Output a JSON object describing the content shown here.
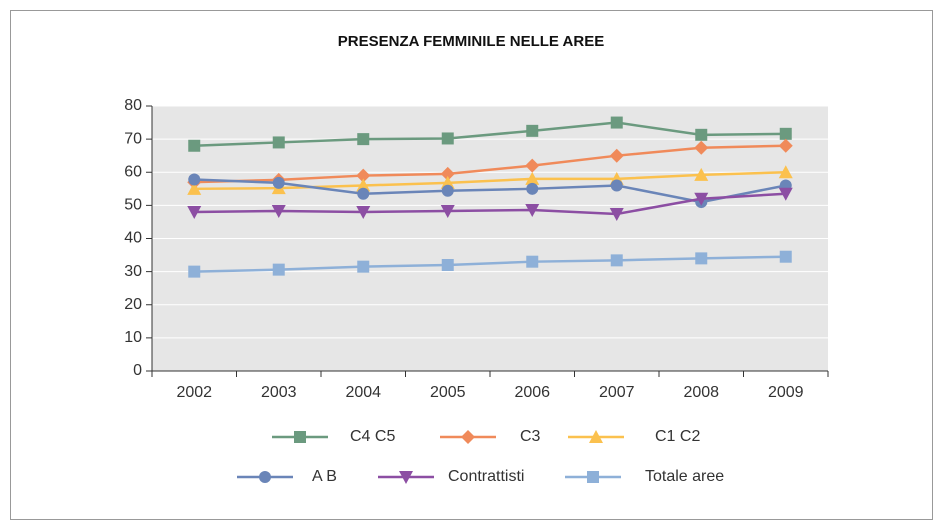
{
  "chart_data": {
    "type": "line",
    "title": "PRESENZA FEMMINILE NELLE AREE",
    "categories": [
      "2002",
      "2003",
      "2004",
      "2005",
      "2006",
      "2007",
      "2008",
      "2009"
    ],
    "ylim": [
      0,
      80
    ],
    "yticks": [
      0,
      10,
      20,
      30,
      40,
      50,
      60,
      70,
      80
    ],
    "grid": true,
    "series": [
      {
        "name": "C4 C5",
        "color": "#6b9a7f",
        "marker": "square",
        "values": [
          68,
          69,
          70,
          70.2,
          72.5,
          75,
          71.3,
          71.6
        ]
      },
      {
        "name": "C3",
        "color": "#f08a5a",
        "marker": "diamond",
        "values": [
          57,
          57.7,
          59,
          59.5,
          62,
          65,
          67.4,
          68
        ]
      },
      {
        "name": "C1 C2",
        "color": "#fbc14e",
        "marker": "triangle",
        "values": [
          55,
          55.2,
          56,
          56.8,
          58,
          58,
          59.2,
          60
        ]
      },
      {
        "name": "A B",
        "color": "#6a85b8",
        "marker": "circle",
        "values": [
          57.8,
          56.8,
          53.5,
          54.4,
          55,
          56,
          51,
          56
        ]
      },
      {
        "name": "Contrattisti",
        "color": "#8c4ea3",
        "marker": "triangle-down",
        "values": [
          48,
          48.3,
          48,
          48.3,
          48.6,
          47.4,
          52,
          53.5
        ]
      },
      {
        "name": "Totale aree",
        "color": "#8eb0d8",
        "marker": "square",
        "values": [
          30,
          30.6,
          31.5,
          32,
          33,
          33.4,
          34,
          34.5
        ]
      }
    ]
  }
}
